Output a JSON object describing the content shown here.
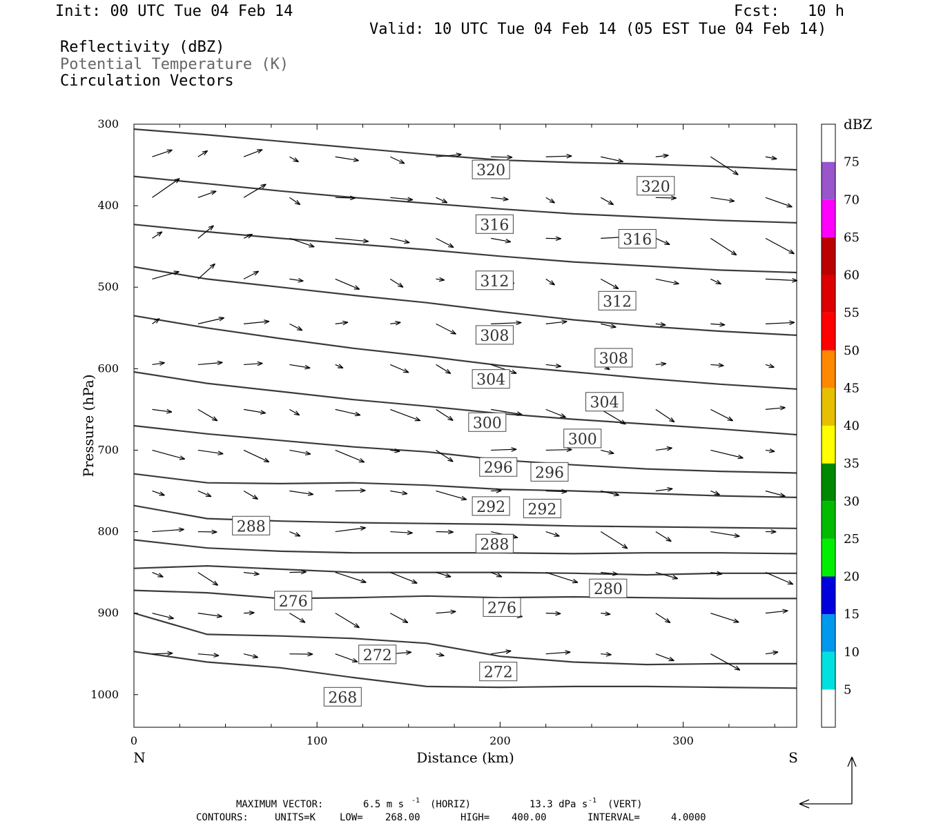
{
  "header": {
    "init": "Init: 00 UTC Tue 04 Feb 14",
    "fcst_label": "Fcst:",
    "fcst_value": "10 h",
    "valid": "Valid: 10 UTC Tue 04 Feb 14 (05 EST Tue 04 Feb 14)",
    "legend_lines": [
      "Reflectivity (dBZ)",
      "Potential Temperature (K)",
      "Circulation Vectors"
    ]
  },
  "footer": {
    "max_vector_label": "MAXIMUM VECTOR:",
    "max_vector_horiz": "6.5 m s",
    "horiz_unit": "(HORIZ)",
    "max_vector_vert": "13.3 dPa s",
    "vert_unit": "(VERT)",
    "superscript": "-1",
    "contours_label": "CONTOURS:",
    "units": "UNITS=K",
    "low": "LOW=",
    "low_value": "268.00",
    "high": "HIGH=",
    "high_value": "400.00",
    "interval": "INTERVAL=",
    "interval_value": "4.0000"
  },
  "colors": {
    "contour": "#3a3a3a",
    "vector": "#000000",
    "frame": "#000000"
  },
  "chart_data": {
    "type": "line",
    "xlabel": "Distance (km)",
    "ylabel": "Pressure (hPa)",
    "xlim": [
      0,
      362
    ],
    "ylim": [
      1040,
      300
    ],
    "x_ticks": [
      0,
      100,
      200,
      300
    ],
    "y_ticks": [
      300,
      400,
      500,
      600,
      700,
      800,
      900,
      1000
    ],
    "x_end_labels": {
      "left": "N",
      "right": "S"
    },
    "colorbar": {
      "unit": "dBZ",
      "levels": [
        5,
        10,
        15,
        20,
        25,
        30,
        35,
        40,
        45,
        50,
        55,
        60,
        65,
        70,
        75
      ],
      "colors": [
        "#ffffff",
        "#00e0e0",
        "#0099ee",
        "#0000dd",
        "#00ee00",
        "#00bb00",
        "#008800",
        "#ffff00",
        "#e6c000",
        "#ff8800",
        "#ff0000",
        "#dd0000",
        "#bb0000",
        "#ff00ff",
        "#9955cc",
        "#ffffff"
      ]
    },
    "contour_labels": [
      {
        "text": "320",
        "x": 195,
        "p": 356
      },
      {
        "text": "320",
        "x": 285,
        "p": 376
      },
      {
        "text": "316",
        "x": 197,
        "p": 423
      },
      {
        "text": "316",
        "x": 275,
        "p": 441
      },
      {
        "text": "312",
        "x": 197,
        "p": 492
      },
      {
        "text": "312",
        "x": 264,
        "p": 517
      },
      {
        "text": "308",
        "x": 197,
        "p": 559
      },
      {
        "text": "308",
        "x": 262,
        "p": 587
      },
      {
        "text": "304",
        "x": 195,
        "p": 613
      },
      {
        "text": "304",
        "x": 257,
        "p": 641
      },
      {
        "text": "300",
        "x": 193,
        "p": 666
      },
      {
        "text": "300",
        "x": 245,
        "p": 686
      },
      {
        "text": "296",
        "x": 199,
        "p": 721
      },
      {
        "text": "296",
        "x": 227,
        "p": 727
      },
      {
        "text": "292",
        "x": 195,
        "p": 769
      },
      {
        "text": "292",
        "x": 223,
        "p": 772
      },
      {
        "text": "288",
        "x": 64,
        "p": 793
      },
      {
        "text": "288",
        "x": 197,
        "p": 815
      },
      {
        "text": "280",
        "x": 259,
        "p": 870
      },
      {
        "text": "276",
        "x": 87,
        "p": 885
      },
      {
        "text": "276",
        "x": 201,
        "p": 893
      },
      {
        "text": "272",
        "x": 133,
        "p": 951
      },
      {
        "text": "272",
        "x": 199,
        "p": 972
      },
      {
        "text": "268",
        "x": 114,
        "p": 1003
      }
    ],
    "series": [
      {
        "x": [
          0,
          40,
          80,
          120,
          160,
          200,
          240,
          280,
          320,
          362
        ],
        "y": [
          306,
          313,
          321,
          329,
          337,
          344,
          347,
          349,
          352,
          356
        ]
      },
      {
        "x": [
          0,
          40,
          80,
          120,
          160,
          200,
          240,
          280,
          320,
          362
        ],
        "y": [
          364,
          373,
          382,
          390,
          397,
          404,
          410,
          414,
          418,
          421
        ]
      },
      {
        "x": [
          0,
          40,
          80,
          120,
          160,
          200,
          240,
          280,
          320,
          362
        ],
        "y": [
          423,
          432,
          440,
          447,
          454,
          462,
          469,
          474,
          479,
          482
        ]
      },
      {
        "x": [
          0,
          40,
          80,
          120,
          160,
          200,
          240,
          280,
          320,
          362
        ],
        "y": [
          475,
          490,
          500,
          510,
          519,
          530,
          540,
          548,
          554,
          559
        ]
      },
      {
        "x": [
          0,
          40,
          80,
          120,
          160,
          200,
          240,
          280,
          320,
          362
        ],
        "y": [
          535,
          550,
          563,
          575,
          585,
          596,
          604,
          612,
          619,
          625
        ]
      },
      {
        "x": [
          0,
          40,
          80,
          120,
          160,
          200,
          240,
          280,
          320,
          362
        ],
        "y": [
          604,
          618,
          628,
          638,
          646,
          655,
          662,
          668,
          674,
          681
        ]
      },
      {
        "x": [
          0,
          40,
          80,
          120,
          160,
          200,
          240,
          280,
          320,
          362
        ],
        "y": [
          670,
          680,
          688,
          696,
          702,
          712,
          718,
          723,
          726,
          728
        ]
      },
      {
        "x": [
          0,
          40,
          80,
          120,
          160,
          200,
          240,
          280,
          320,
          362
        ],
        "y": [
          729,
          740,
          741,
          740,
          743,
          748,
          750,
          753,
          756,
          758
        ]
      },
      {
        "x": [
          0,
          40,
          80,
          120,
          160,
          200,
          240,
          280,
          320,
          362
        ],
        "y": [
          768,
          784,
          787,
          789,
          790,
          791,
          793,
          794,
          795,
          796
        ]
      },
      {
        "x": [
          0,
          40,
          80,
          120,
          160,
          200,
          240,
          280,
          320,
          362
        ],
        "y": [
          810,
          820,
          824,
          826,
          826,
          826,
          827,
          826,
          826,
          827
        ]
      },
      {
        "x": [
          0,
          40,
          80,
          120,
          160,
          200,
          240,
          280,
          320,
          362
        ],
        "y": [
          845,
          842,
          846,
          850,
          850,
          850,
          851,
          853,
          851,
          851
        ]
      },
      {
        "x": [
          0,
          40,
          80,
          120,
          160,
          200,
          240,
          280,
          320,
          362
        ],
        "y": [
          872,
          875,
          882,
          881,
          879,
          881,
          880,
          881,
          882,
          882
        ]
      },
      {
        "x": [
          0,
          40,
          80,
          120,
          160,
          200,
          240,
          280,
          320,
          362
        ],
        "y": [
          900,
          926,
          928,
          931,
          937,
          953,
          960,
          963,
          962,
          962
        ]
      },
      {
        "x": [
          0,
          40,
          80,
          120,
          160,
          200,
          240,
          280,
          320,
          362
        ],
        "y": [
          947,
          960,
          967,
          979,
          990,
          991,
          990,
          990,
          991,
          992
        ]
      }
    ]
  }
}
